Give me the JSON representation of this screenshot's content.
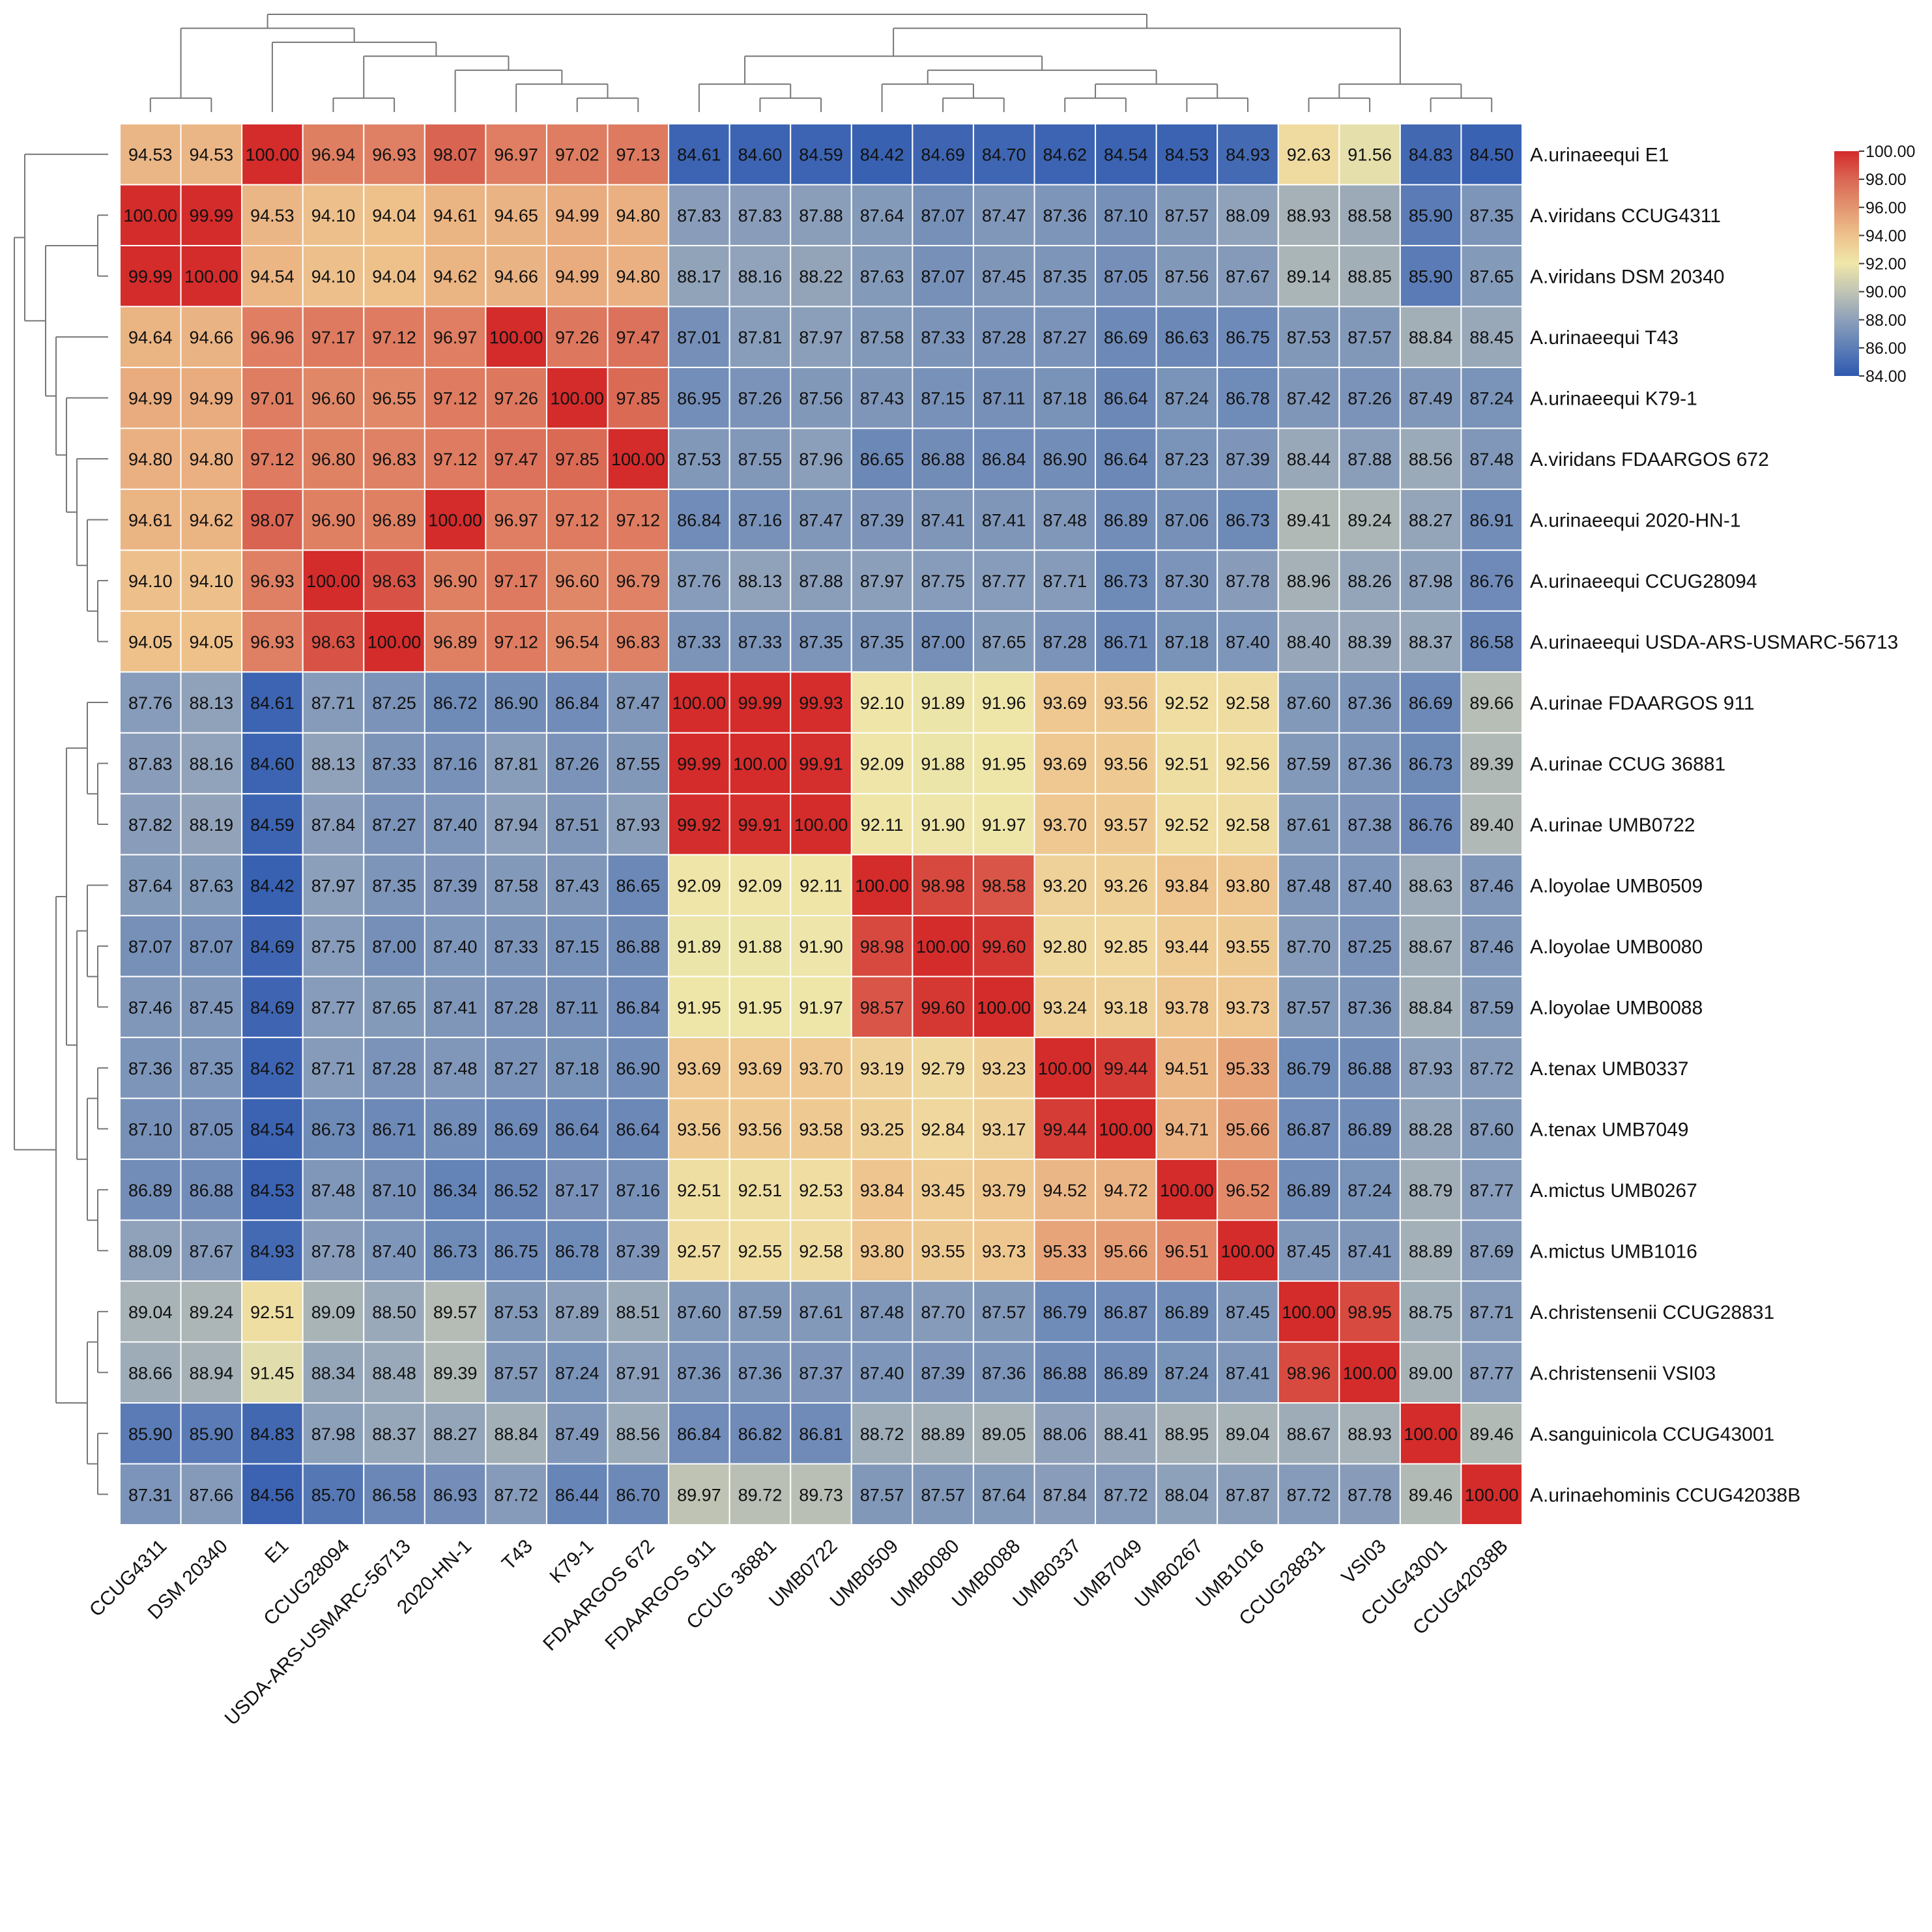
{
  "chart_data": {
    "type": "heatmap",
    "title": "",
    "columns": [
      "CCUG4311",
      "DSM 20340",
      "E1",
      "CCUG28094",
      "USDA-ARS-USMARC-56713",
      "2020-HN-1",
      "T43",
      "K79-1",
      "FDAARGOS 672",
      "FDAARGOS 911",
      "CCUG 36881",
      "UMB0722",
      "UMB0509",
      "UMB0080",
      "UMB0088",
      "UMB0337",
      "UMB7049",
      "UMB0267",
      "UMB1016",
      "CCUG28831",
      "VSI03",
      "CCUG43001",
      "CCUG42038B"
    ],
    "rows": [
      "A.urinaeequi E1",
      "A.viridans CCUG4311",
      "A.viridans DSM 20340",
      "A.urinaeequi T43",
      "A.urinaeequi K79-1",
      "A.viridans FDAARGOS 672",
      "A.urinaeequi 2020-HN-1",
      "A.urinaeequi CCUG28094",
      "A.urinaeequi USDA-ARS-USMARC-56713",
      "A.urinae FDAARGOS 911",
      "A.urinae CCUG 36881",
      "A.urinae UMB0722",
      "A.loyolae UMB0509",
      "A.loyolae UMB0080",
      "A.loyolae UMB0088",
      "A.tenax UMB0337",
      "A.tenax UMB7049",
      "A.mictus UMB0267",
      "A.mictus UMB1016",
      "A.christensenii CCUG28831",
      "A.christensenii VSI03",
      "A.sanguinicola CCUG43001",
      "A.urinaehominis CCUG42038B"
    ],
    "values": [
      [
        "94.53",
        "94.53",
        "100.00",
        "96.94",
        "96.93",
        "98.07",
        "96.97",
        "97.02",
        "97.13",
        "84.61",
        "84.60",
        "84.59",
        "84.42",
        "84.69",
        "84.70",
        "84.62",
        "84.54",
        "84.53",
        "84.93",
        "92.63",
        "91.56",
        "84.83",
        "84.50"
      ],
      [
        "100.00",
        "99.99",
        "94.53",
        "94.10",
        "94.04",
        "94.61",
        "94.65",
        "94.99",
        "94.80",
        "87.83",
        "87.83",
        "87.88",
        "87.64",
        "87.07",
        "87.47",
        "87.36",
        "87.10",
        "87.57",
        "88.09",
        "88.93",
        "88.58",
        "85.90",
        "87.35"
      ],
      [
        "99.99",
        "100.00",
        "94.54",
        "94.10",
        "94.04",
        "94.62",
        "94.66",
        "94.99",
        "94.80",
        "88.17",
        "88.16",
        "88.22",
        "87.63",
        "87.07",
        "87.45",
        "87.35",
        "87.05",
        "87.56",
        "87.67",
        "89.14",
        "88.85",
        "85.90",
        "87.65"
      ],
      [
        "94.64",
        "94.66",
        "96.96",
        "97.17",
        "97.12",
        "96.97",
        "100.00",
        "97.26",
        "97.47",
        "87.01",
        "87.81",
        "87.97",
        "87.58",
        "87.33",
        "87.28",
        "87.27",
        "86.69",
        "86.63",
        "86.75",
        "87.53",
        "87.57",
        "88.84",
        "88.45"
      ],
      [
        "94.99",
        "94.99",
        "97.01",
        "96.60",
        "96.55",
        "97.12",
        "97.26",
        "100.00",
        "97.85",
        "86.95",
        "87.26",
        "87.56",
        "87.43",
        "87.15",
        "87.11",
        "87.18",
        "86.64",
        "87.24",
        "86.78",
        "87.42",
        "87.26",
        "87.49",
        "87.24"
      ],
      [
        "94.80",
        "94.80",
        "97.12",
        "96.80",
        "96.83",
        "97.12",
        "97.47",
        "97.85",
        "100.00",
        "87.53",
        "87.55",
        "87.96",
        "86.65",
        "86.88",
        "86.84",
        "86.90",
        "86.64",
        "87.23",
        "87.39",
        "88.44",
        "87.88",
        "88.56",
        "87.48"
      ],
      [
        "94.61",
        "94.62",
        "98.07",
        "96.90",
        "96.89",
        "100.00",
        "96.97",
        "97.12",
        "97.12",
        "86.84",
        "87.16",
        "87.47",
        "87.39",
        "87.41",
        "87.41",
        "87.48",
        "86.89",
        "87.06",
        "86.73",
        "89.41",
        "89.24",
        "88.27",
        "86.91"
      ],
      [
        "94.10",
        "94.10",
        "96.93",
        "100.00",
        "98.63",
        "96.90",
        "97.17",
        "96.60",
        "96.79",
        "87.76",
        "88.13",
        "87.88",
        "87.97",
        "87.75",
        "87.77",
        "87.71",
        "86.73",
        "87.30",
        "87.78",
        "88.96",
        "88.26",
        "87.98",
        "86.76"
      ],
      [
        "94.05",
        "94.05",
        "96.93",
        "98.63",
        "100.00",
        "96.89",
        "97.12",
        "96.54",
        "96.83",
        "87.33",
        "87.33",
        "87.35",
        "87.35",
        "87.00",
        "87.65",
        "87.28",
        "86.71",
        "87.18",
        "87.40",
        "88.40",
        "88.39",
        "88.37",
        "86.58"
      ],
      [
        "87.76",
        "88.13",
        "84.61",
        "87.71",
        "87.25",
        "86.72",
        "86.90",
        "86.84",
        "87.47",
        "100.00",
        "99.99",
        "99.93",
        "92.10",
        "91.89",
        "91.96",
        "93.69",
        "93.56",
        "92.52",
        "92.58",
        "87.60",
        "87.36",
        "86.69",
        "89.66"
      ],
      [
        "87.83",
        "88.16",
        "84.60",
        "88.13",
        "87.33",
        "87.16",
        "87.81",
        "87.26",
        "87.55",
        "99.99",
        "100.00",
        "99.91",
        "92.09",
        "91.88",
        "91.95",
        "93.69",
        "93.56",
        "92.51",
        "92.56",
        "87.59",
        "87.36",
        "86.73",
        "89.39"
      ],
      [
        "87.82",
        "88.19",
        "84.59",
        "87.84",
        "87.27",
        "87.40",
        "87.94",
        "87.51",
        "87.93",
        "99.92",
        "99.91",
        "100.00",
        "92.11",
        "91.90",
        "91.97",
        "93.70",
        "93.57",
        "92.52",
        "92.58",
        "87.61",
        "87.38",
        "86.76",
        "89.40"
      ],
      [
        "87.64",
        "87.63",
        "84.42",
        "87.97",
        "87.35",
        "87.39",
        "87.58",
        "87.43",
        "86.65",
        "92.09",
        "92.09",
        "92.11",
        "100.00",
        "98.98",
        "98.58",
        "93.20",
        "93.26",
        "93.84",
        "93.80",
        "87.48",
        "87.40",
        "88.63",
        "87.46"
      ],
      [
        "87.07",
        "87.07",
        "84.69",
        "87.75",
        "87.00",
        "87.40",
        "87.33",
        "87.15",
        "86.88",
        "91.89",
        "91.88",
        "91.90",
        "98.98",
        "100.00",
        "99.60",
        "92.80",
        "92.85",
        "93.44",
        "93.55",
        "87.70",
        "87.25",
        "88.67",
        "87.46"
      ],
      [
        "87.46",
        "87.45",
        "84.69",
        "87.77",
        "87.65",
        "87.41",
        "87.28",
        "87.11",
        "86.84",
        "91.95",
        "91.95",
        "91.97",
        "98.57",
        "99.60",
        "100.00",
        "93.24",
        "93.18",
        "93.78",
        "93.73",
        "87.57",
        "87.36",
        "88.84",
        "87.59"
      ],
      [
        "87.36",
        "87.35",
        "84.62",
        "87.71",
        "87.28",
        "87.48",
        "87.27",
        "87.18",
        "86.90",
        "93.69",
        "93.69",
        "93.70",
        "93.19",
        "92.79",
        "93.23",
        "100.00",
        "99.44",
        "94.51",
        "95.33",
        "86.79",
        "86.88",
        "87.93",
        "87.72"
      ],
      [
        "87.10",
        "87.05",
        "84.54",
        "86.73",
        "86.71",
        "86.89",
        "86.69",
        "86.64",
        "86.64",
        "93.56",
        "93.56",
        "93.58",
        "93.25",
        "92.84",
        "93.17",
        "99.44",
        "100.00",
        "94.71",
        "95.66",
        "86.87",
        "86.89",
        "88.28",
        "87.60"
      ],
      [
        "86.89",
        "86.88",
        "84.53",
        "87.48",
        "87.10",
        "86.34",
        "86.52",
        "87.17",
        "87.16",
        "92.51",
        "92.51",
        "92.53",
        "93.84",
        "93.45",
        "93.79",
        "94.52",
        "94.72",
        "100.00",
        "96.52",
        "86.89",
        "87.24",
        "88.79",
        "87.77"
      ],
      [
        "88.09",
        "87.67",
        "84.93",
        "87.78",
        "87.40",
        "86.73",
        "86.75",
        "86.78",
        "87.39",
        "92.57",
        "92.55",
        "92.58",
        "93.80",
        "93.55",
        "93.73",
        "95.33",
        "95.66",
        "96.51",
        "100.00",
        "87.45",
        "87.41",
        "88.89",
        "87.69"
      ],
      [
        "89.04",
        "89.24",
        "92.51",
        "89.09",
        "88.50",
        "89.57",
        "87.53",
        "87.89",
        "88.51",
        "87.60",
        "87.59",
        "87.61",
        "87.48",
        "87.70",
        "87.57",
        "86.79",
        "86.87",
        "86.89",
        "87.45",
        "100.00",
        "98.95",
        "88.75",
        "87.71"
      ],
      [
        "88.66",
        "88.94",
        "91.45",
        "88.34",
        "88.48",
        "89.39",
        "87.57",
        "87.24",
        "87.91",
        "87.36",
        "87.36",
        "87.37",
        "87.40",
        "87.39",
        "87.36",
        "86.88",
        "86.89",
        "87.24",
        "87.41",
        "98.96",
        "100.00",
        "89.00",
        "87.77"
      ],
      [
        "85.90",
        "85.90",
        "84.83",
        "87.98",
        "88.37",
        "88.27",
        "88.84",
        "87.49",
        "88.56",
        "86.84",
        "86.82",
        "86.81",
        "88.72",
        "88.89",
        "89.05",
        "88.06",
        "88.41",
        "88.95",
        "89.04",
        "88.67",
        "88.93",
        "100.00",
        "89.46"
      ],
      [
        "87.31",
        "87.66",
        "84.56",
        "85.70",
        "86.58",
        "86.93",
        "87.72",
        "86.44",
        "86.70",
        "89.97",
        "89.72",
        "89.73",
        "87.57",
        "87.57",
        "87.64",
        "87.84",
        "87.72",
        "88.04",
        "87.87",
        "87.72",
        "87.78",
        "89.46",
        "100.00"
      ]
    ],
    "colorbar": {
      "min": 84,
      "max": 100,
      "ticks": [
        "100.00",
        "98.00",
        "96.00",
        "94.00",
        "92.00",
        "90.00",
        "88.00",
        "86.00",
        "84.00"
      ],
      "stops": [
        {
          "value": 84,
          "color": "#2f59b0"
        },
        {
          "value": 86,
          "color": "#5c7db6"
        },
        {
          "value": 88,
          "color": "#8da0ba"
        },
        {
          "value": 90,
          "color": "#c0c4b4"
        },
        {
          "value": 92,
          "color": "#efe7a9"
        },
        {
          "value": 94,
          "color": "#eec28c"
        },
        {
          "value": 96,
          "color": "#e39570"
        },
        {
          "value": 98,
          "color": "#da6653"
        },
        {
          "value": 100,
          "color": "#d42b2b"
        }
      ]
    },
    "col_dendrogram": {
      "ltype": "tree",
      "tree": [
        [
          [
            0,
            1
          ],
          [
            2,
            [
              [
                3,
                4
              ],
              [
                5,
                [
                  6,
                  [
                    7,
                    8
                  ]
                ]
              ]
            ]
          ]
        ],
        [
          [
            [
              [
                9,
                [
                  10,
                  11
                ]
              ],
              [
                [
                  12,
                  [
                    13,
                    14
                  ]
                ],
                [
                  [
                    15,
                    16
                  ],
                  [
                    17,
                    18
                  ]
                ]
              ]
            ]
          ],
          [
            [
              [
                19,
                20
              ],
              [
                21,
                22
              ]
            ]
          ]
        ]
      ]
    },
    "row_dendrogram": {
      "tree": [
        [
          0,
          [
            [
              [
                1,
                2
              ],
              [
                3,
                [
                  4,
                  [
                    5,
                    [
                      6,
                      [
                        7,
                        8
                      ]
                    ]
                  ]
                ]
              ]
            ]
          ]
        ],
        [
          [
            [
              [
                9,
                [
                  10,
                  11
                ]
              ],
              [
                [
                  12,
                  [
                    13,
                    14
                  ]
                ],
                [
                  [
                    15,
                    16
                  ],
                  [
                    17,
                    18
                  ]
                ]
              ]
            ],
            [
              [
                [
                  19,
                  20
                ],
                [
                  21,
                  22
                ]
              ]
            ]
          ]
        ]
      ]
    }
  }
}
